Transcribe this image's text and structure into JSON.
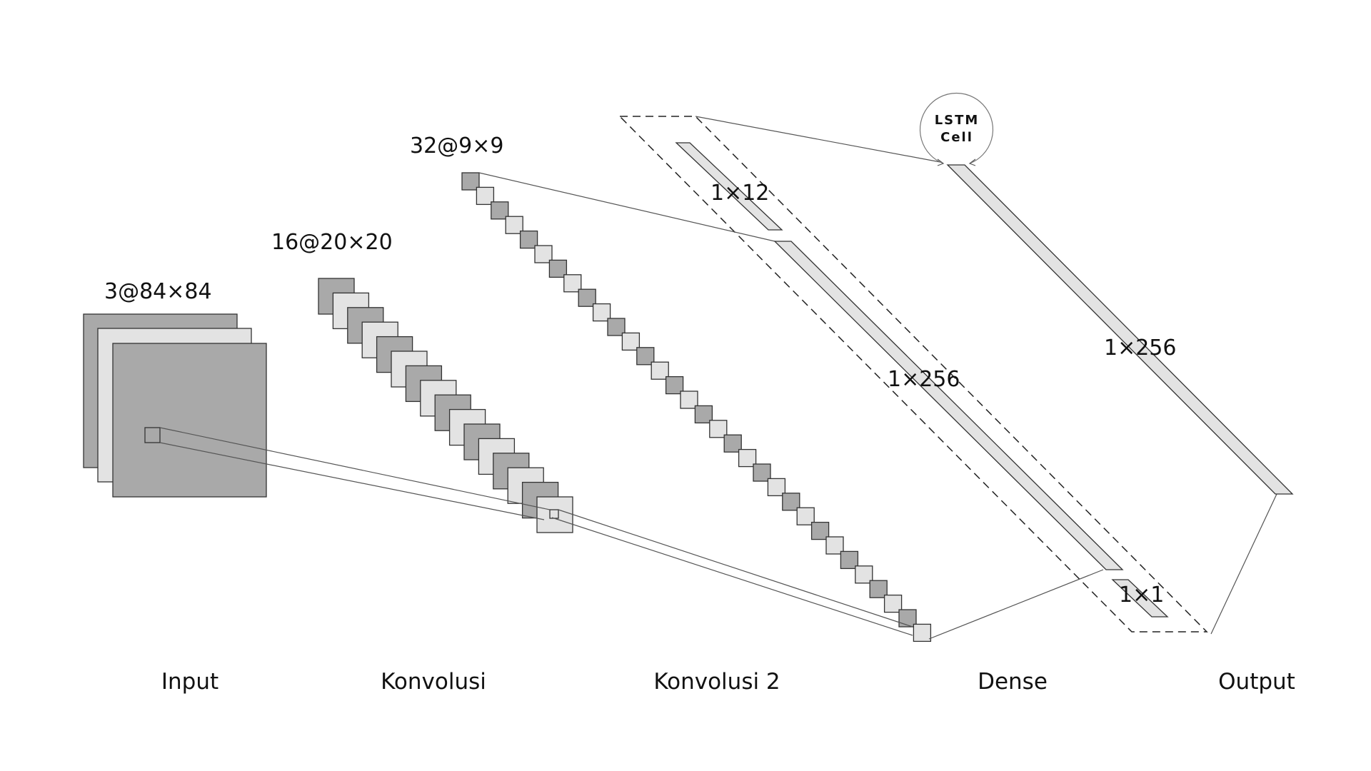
{
  "labels": {
    "input_dim": "3@84×84",
    "conv1_dim": "16@20×20",
    "conv2_dim": "32@9×9",
    "dense_aux_dim": "1×12",
    "dense_main_dim": "1×256",
    "lstm_out_dim": "1×256",
    "output_dim": "1×1",
    "lstm_cell_line1": "LSTM",
    "lstm_cell_line2": "Cell"
  },
  "stages": {
    "input": "Input",
    "conv1": "Konvolusi",
    "conv2": "Konvolusi 2",
    "dense": "Dense",
    "output": "Output"
  },
  "colors": {
    "dark_fill": "#a9a9a9",
    "light_fill": "#e3e3e3",
    "bar_fill": "#e3e3e3",
    "stroke": "#333333",
    "background": "#ffffff"
  }
}
